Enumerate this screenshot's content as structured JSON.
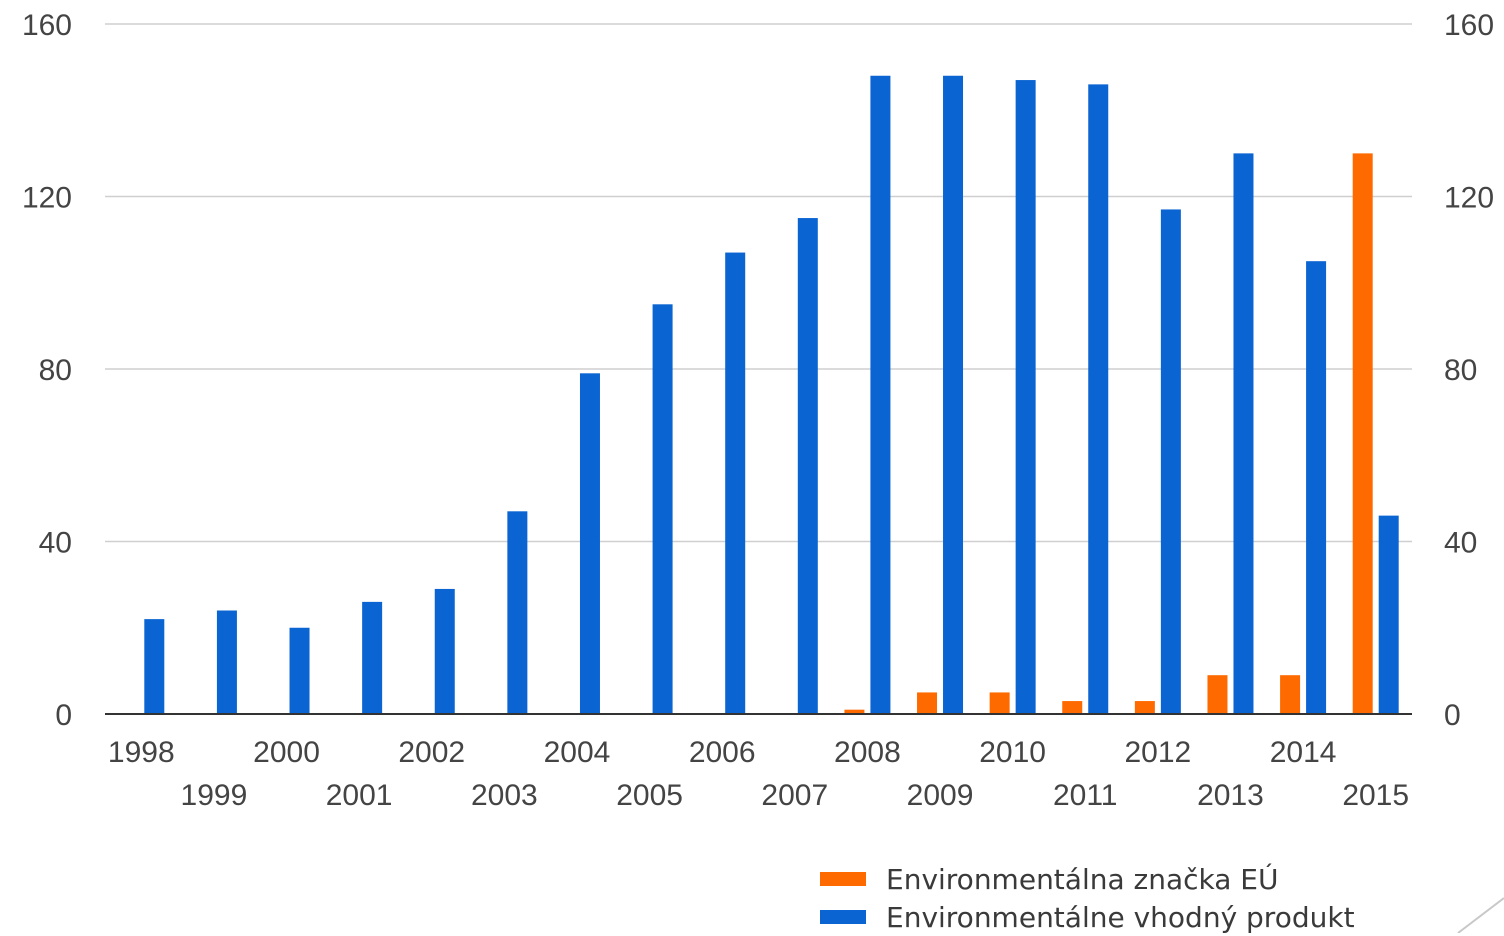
{
  "chart_data": {
    "type": "bar",
    "categories": [
      "1998",
      "1999",
      "2000",
      "2001",
      "2002",
      "2003",
      "2004",
      "2005",
      "2006",
      "2007",
      "2008",
      "2009",
      "2010",
      "2011",
      "2012",
      "2013",
      "2014",
      "2015"
    ],
    "series": [
      {
        "name": "Environmentálna značka EÚ",
        "color": "#ff6a00",
        "values": [
          0,
          0,
          0,
          0,
          0,
          0,
          0,
          0,
          0,
          0,
          1,
          5,
          5,
          3,
          3,
          9,
          9,
          130
        ]
      },
      {
        "name": "Environmentálne vhodný produkt",
        "color": "#0a64d2",
        "values": [
          22,
          24,
          20,
          26,
          29,
          47,
          79,
          95,
          107,
          115,
          148,
          148,
          147,
          146,
          117,
          130,
          105,
          46
        ]
      }
    ],
    "yticks": [
      "0",
      "40",
      "80",
      "120",
      "160"
    ],
    "ylim": [
      0,
      160
    ],
    "grid": true,
    "secondary_axis": true,
    "legend_position": "bottom-right"
  }
}
